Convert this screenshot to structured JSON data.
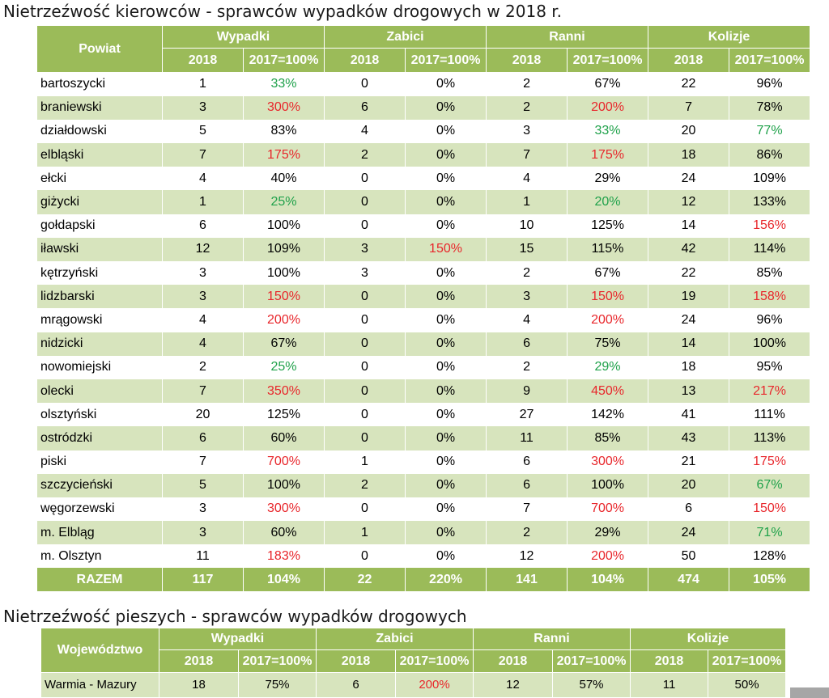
{
  "table1": {
    "title": "Nietrzeźwość kierowców - sprawców wypadków drogowych w 2018 r.",
    "row_header": "Powiat",
    "groups": [
      "Wypadki",
      "Zabici",
      "Ranni",
      "Kolizje"
    ],
    "sub": [
      "2018",
      "2017=100%"
    ],
    "rows": [
      {
        "name": "bartoszycki",
        "cells": [
          "1",
          "33%",
          "0",
          "0%",
          "2",
          "67%",
          "22",
          "96%"
        ],
        "colors": [
          "",
          "green",
          "",
          "",
          "",
          "",
          "",
          ""
        ]
      },
      {
        "name": "braniewski",
        "cells": [
          "3",
          "300%",
          "6",
          "0%",
          "2",
          "200%",
          "7",
          "78%"
        ],
        "colors": [
          "",
          "red",
          "",
          "",
          "",
          "red",
          "",
          ""
        ]
      },
      {
        "name": "działdowski",
        "cells": [
          "5",
          "83%",
          "4",
          "0%",
          "3",
          "33%",
          "20",
          "77%"
        ],
        "colors": [
          "",
          "",
          "",
          "",
          "",
          "green",
          "",
          "green"
        ]
      },
      {
        "name": "elbląski",
        "cells": [
          "7",
          "175%",
          "2",
          "0%",
          "7",
          "175%",
          "18",
          "86%"
        ],
        "colors": [
          "",
          "red",
          "",
          "",
          "",
          "red",
          "",
          ""
        ]
      },
      {
        "name": "ełcki",
        "cells": [
          "4",
          "40%",
          "0",
          "0%",
          "4",
          "29%",
          "24",
          "109%"
        ],
        "colors": [
          "",
          "",
          "",
          "",
          "",
          "",
          "",
          ""
        ]
      },
      {
        "name": "giżycki",
        "cells": [
          "1",
          "25%",
          "0",
          "0%",
          "1",
          "20%",
          "12",
          "133%"
        ],
        "colors": [
          "",
          "green",
          "",
          "",
          "",
          "green",
          "",
          ""
        ]
      },
      {
        "name": "gołdapski",
        "cells": [
          "6",
          "100%",
          "0",
          "0%",
          "10",
          "125%",
          "14",
          "156%"
        ],
        "colors": [
          "",
          "",
          "",
          "",
          "",
          "",
          "",
          "red"
        ]
      },
      {
        "name": "iławski",
        "cells": [
          "12",
          "109%",
          "3",
          "150%",
          "15",
          "115%",
          "42",
          "114%"
        ],
        "colors": [
          "",
          "",
          "",
          "red",
          "",
          "",
          "",
          ""
        ]
      },
      {
        "name": "kętrzyński",
        "cells": [
          "3",
          "100%",
          "3",
          "0%",
          "2",
          "67%",
          "22",
          "85%"
        ],
        "colors": [
          "",
          "",
          "",
          "",
          "",
          "",
          "",
          ""
        ]
      },
      {
        "name": "lidzbarski",
        "cells": [
          "3",
          "150%",
          "0",
          "0%",
          "3",
          "150%",
          "19",
          "158%"
        ],
        "colors": [
          "",
          "red",
          "",
          "",
          "",
          "red",
          "",
          "red"
        ]
      },
      {
        "name": "mrągowski",
        "cells": [
          "4",
          "200%",
          "0",
          "0%",
          "4",
          "200%",
          "24",
          "96%"
        ],
        "colors": [
          "",
          "red",
          "",
          "",
          "",
          "red",
          "",
          ""
        ]
      },
      {
        "name": "nidzicki",
        "cells": [
          "4",
          "67%",
          "0",
          "0%",
          "6",
          "75%",
          "14",
          "100%"
        ],
        "colors": [
          "",
          "",
          "",
          "",
          "",
          "",
          "",
          ""
        ]
      },
      {
        "name": "nowomiejski",
        "cells": [
          "2",
          "25%",
          "0",
          "0%",
          "2",
          "29%",
          "18",
          "95%"
        ],
        "colors": [
          "",
          "green",
          "",
          "",
          "",
          "green",
          "",
          ""
        ]
      },
      {
        "name": "olecki",
        "cells": [
          "7",
          "350%",
          "0",
          "0%",
          "9",
          "450%",
          "13",
          "217%"
        ],
        "colors": [
          "",
          "red",
          "",
          "",
          "",
          "red",
          "",
          "red"
        ]
      },
      {
        "name": "olsztyński",
        "cells": [
          "20",
          "125%",
          "0",
          "0%",
          "27",
          "142%",
          "41",
          "111%"
        ],
        "colors": [
          "",
          "",
          "",
          "",
          "",
          "",
          "",
          ""
        ]
      },
      {
        "name": "ostródzki",
        "cells": [
          "6",
          "60%",
          "0",
          "0%",
          "11",
          "85%",
          "43",
          "113%"
        ],
        "colors": [
          "",
          "",
          "",
          "",
          "",
          "",
          "",
          ""
        ]
      },
      {
        "name": "piski",
        "cells": [
          "7",
          "700%",
          "1",
          "0%",
          "6",
          "300%",
          "21",
          "175%"
        ],
        "colors": [
          "",
          "red",
          "",
          "",
          "",
          "red",
          "",
          "red"
        ]
      },
      {
        "name": "szczycieński",
        "cells": [
          "5",
          "100%",
          "2",
          "0%",
          "6",
          "100%",
          "20",
          "67%"
        ],
        "colors": [
          "",
          "",
          "",
          "",
          "",
          "",
          "",
          "green"
        ]
      },
      {
        "name": "węgorzewski",
        "cells": [
          "3",
          "300%",
          "0",
          "0%",
          "7",
          "700%",
          "6",
          "150%"
        ],
        "colors": [
          "",
          "red",
          "",
          "",
          "",
          "red",
          "",
          "red"
        ]
      },
      {
        "name": "m. Elbląg",
        "cells": [
          "3",
          "60%",
          "1",
          "0%",
          "2",
          "29%",
          "24",
          "71%"
        ],
        "colors": [
          "",
          "",
          "",
          "",
          "",
          "",
          "",
          "green"
        ]
      },
      {
        "name": "m. Olsztyn",
        "cells": [
          "11",
          "183%",
          "0",
          "0%",
          "12",
          "200%",
          "50",
          "128%"
        ],
        "colors": [
          "",
          "red",
          "",
          "",
          "",
          "red",
          "",
          ""
        ]
      }
    ],
    "total": {
      "name": "RAZEM",
      "cells": [
        "117",
        "104%",
        "22",
        "220%",
        "141",
        "104%",
        "474",
        "105%"
      ]
    }
  },
  "table2": {
    "title": "Nietrzeźwość pieszych - sprawców wypadków drogowych",
    "row_header": "Województwo",
    "groups": [
      "Wypadki",
      "Zabici",
      "Ranni",
      "Kolizje"
    ],
    "sub": [
      "2018",
      "2017=100%"
    ],
    "rows": [
      {
        "name": "Warmia - Mazury",
        "cells": [
          "18",
          "75%",
          "6",
          "200%",
          "12",
          "57%",
          "11",
          "50%"
        ],
        "colors": [
          "",
          "",
          "",
          "red",
          "",
          "",
          "",
          ""
        ]
      }
    ]
  },
  "colors": {
    "header": "#9bbb59",
    "band": "#d7e4bd",
    "red": "#e8262b",
    "green": "#1fa14a"
  }
}
